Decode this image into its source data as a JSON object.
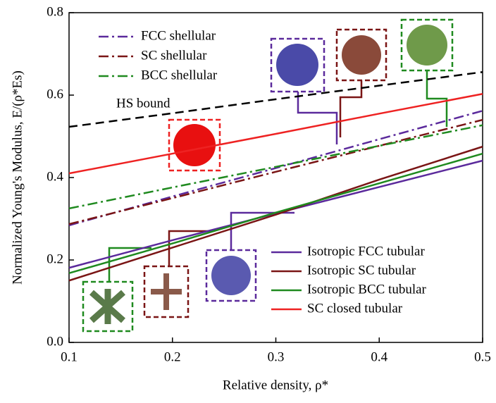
{
  "chart_data": {
    "type": "line",
    "xlabel": "Relative density, ρ*",
    "ylabel": "Normalized Young's Modulus, E/(ρ*Es)",
    "x": [
      0.1,
      0.2,
      0.3,
      0.4,
      0.5
    ],
    "xlim": [
      0.1,
      0.5
    ],
    "xticks": [
      0.1,
      0.2,
      0.3,
      0.4,
      0.5
    ],
    "ylim": [
      0,
      0.8
    ],
    "yticks": [
      {
        "value": 0,
        "label": "0.0"
      },
      0.2,
      0.4,
      0.6,
      0.8
    ],
    "series": [
      {
        "name": "FCC shellular",
        "color": "#5b2a9c",
        "dash": "dashdot",
        "values": [
          0.284,
          0.354,
          0.423,
          0.493,
          0.562
        ]
      },
      {
        "name": "SC shellular",
        "color": "#7a1515",
        "dash": "dashdot",
        "values": [
          0.287,
          0.35,
          0.414,
          0.477,
          0.54
        ]
      },
      {
        "name": "BCC shellular",
        "color": "#1f8a1f",
        "dash": "dashdot",
        "values": [
          0.325,
          0.376,
          0.426,
          0.477,
          0.527
        ]
      },
      {
        "name": "HS bound",
        "color": "#000000",
        "dash": "dashed",
        "values": [
          0.523,
          0.556,
          0.59,
          0.623,
          0.656
        ]
      },
      {
        "name": "Isotropic FCC tubular",
        "color": "#5b2a9c",
        "dash": "solid",
        "values": [
          0.181,
          0.248,
          0.313,
          0.377,
          0.441
        ]
      },
      {
        "name": "Isotropic SC tubular",
        "color": "#7a1515",
        "dash": "solid",
        "values": [
          0.15,
          0.23,
          0.31,
          0.395,
          0.475
        ]
      },
      {
        "name": "Isotropic BCC tubular",
        "color": "#1f8a1f",
        "dash": "solid",
        "values": [
          0.168,
          0.24,
          0.315,
          0.386,
          0.458
        ]
      },
      {
        "name": "SC closed tubular",
        "color": "#ee2222",
        "dash": "solid",
        "values": [
          0.41,
          0.458,
          0.506,
          0.555,
          0.603
        ]
      }
    ]
  }
}
